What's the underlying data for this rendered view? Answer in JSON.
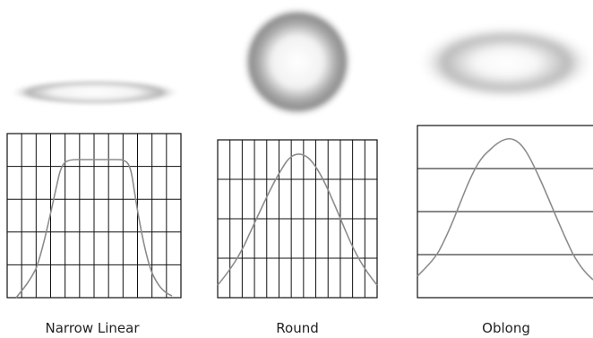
{
  "colors": {
    "background": "#ffffff",
    "grid": "#111111",
    "profile": "#8c8c8c",
    "spot": "#8a8a8a"
  },
  "panels": [
    {
      "id": "narrow-linear",
      "caption": "Narrow Linear",
      "spot_shape": "thin ring-shaped horizontal ellipse",
      "grid": {
        "columns": 12,
        "rows": 5
      },
      "profile": "flat-top trapezoid"
    },
    {
      "id": "round",
      "caption": "Round",
      "spot_shape": "circular ring with bright center",
      "grid": {
        "columns": 13,
        "rows": 4
      },
      "profile": "bell-shaped peak"
    },
    {
      "id": "oblong",
      "caption": "Oblong",
      "spot_shape": "wide soft horizontal ellipse",
      "grid": {
        "columns": 0,
        "rows": 4
      },
      "profile": "rounded peak"
    }
  ]
}
